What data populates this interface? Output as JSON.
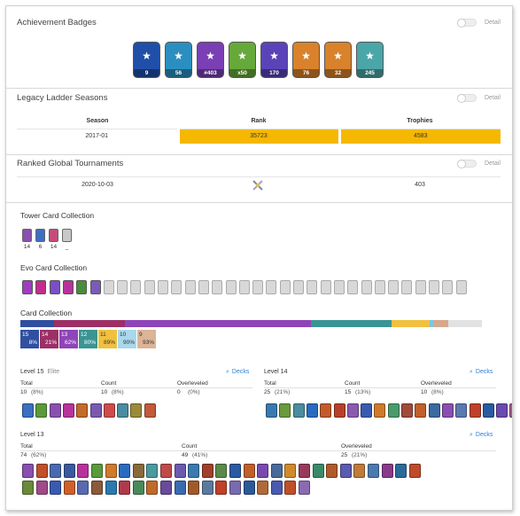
{
  "achievements": {
    "title": "Achievement Badges",
    "detail_label": "Detail",
    "badges": [
      {
        "name": "pool-badge",
        "label": "9",
        "color": "#1f4fa8"
      },
      {
        "name": "level-badge",
        "label": "56",
        "color": "#2a8fc0"
      },
      {
        "name": "trophy-road-badge",
        "label": "#403",
        "color": "#7a3fb5"
      },
      {
        "name": "sword-badge",
        "label": "x50",
        "color": "#66a93a"
      },
      {
        "name": "battle-badge",
        "label": "170",
        "color": "#5a43b8"
      },
      {
        "name": "cw1-badge",
        "label": "76",
        "color": "#d9822b"
      },
      {
        "name": "chest-badge",
        "label": "32",
        "color": "#d9822b"
      },
      {
        "name": "emote-badge",
        "label": "245",
        "color": "#4aa6a8"
      }
    ]
  },
  "legacy": {
    "title": "Legacy Ladder Seasons",
    "detail_label": "Detail",
    "headers": [
      "Season",
      "Rank",
      "Trophies"
    ],
    "row": {
      "season": "2017-01",
      "rank": "35723",
      "trophies": "4583"
    }
  },
  "tournaments": {
    "title": "Ranked Global Tournaments",
    "detail_label": "Detail",
    "row": {
      "date": "2020-10-03",
      "icon": "crossed-swords-icon",
      "value": "403"
    }
  },
  "tower": {
    "title": "Tower Card Collection",
    "cards": [
      {
        "level": "14",
        "color": "#8a4fb0"
      },
      {
        "level": "6",
        "color": "#3b6fc2"
      },
      {
        "level": "14",
        "color": "#c44b7a"
      },
      {
        "level": "_",
        "color": "#c8c8c8"
      }
    ]
  },
  "evo": {
    "title": "Evo Card Collection",
    "owned_colors": [
      "#a03cc0",
      "#c42c8c",
      "#7b4fc4",
      "#b8329a",
      "#4a8c3a",
      "#7d5ab8"
    ],
    "locked_count": 27
  },
  "collection": {
    "title": "Card Collection",
    "bar": [
      {
        "w": 7,
        "color": "#2f4fa0"
      },
      {
        "w": 15,
        "color": "#9c2f66"
      },
      {
        "w": 39,
        "color": "#8e45b8"
      },
      {
        "w": 17,
        "color": "#3a9493"
      },
      {
        "w": 8,
        "color": "#f0c040"
      },
      {
        "w": 1,
        "color": "#7bc6e0"
      },
      {
        "w": 3,
        "color": "#d8a88a"
      },
      {
        "w": 7,
        "color": "#e2e2e2"
      }
    ],
    "levels": [
      {
        "level": "15",
        "pct": "8%",
        "color": "#2f4fa0"
      },
      {
        "level": "14",
        "pct": "21%",
        "color": "#9c2f66"
      },
      {
        "level": "13",
        "pct": "62%",
        "color": "#8e45b8"
      },
      {
        "level": "12",
        "pct": "80%",
        "color": "#3a9493"
      },
      {
        "level": "11",
        "pct": "89%",
        "color": "#f0c040"
      },
      {
        "level": "10",
        "pct": "90%",
        "color": "#a8d8ea"
      },
      {
        "level": "9",
        "pct": "93%",
        "color": "#dcb496"
      }
    ]
  },
  "groups": [
    {
      "heading": "Level 15",
      "elite": "Elite",
      "decks": "Decks",
      "total_label": "Total",
      "total": "10",
      "total_pct": "(8%)",
      "count_label": "Count",
      "count": "10",
      "count_pct": "(8%)",
      "over_label": "Overleveled",
      "over": "0",
      "over_pct": "(0%)",
      "cards": [
        "#3a6fc2",
        "#5a9a3a",
        "#8a4fb0",
        "#b8329a",
        "#c46a2a",
        "#7a5ab0",
        "#d04a4a",
        "#4a8ca0",
        "#9a8a3a",
        "#c05a3a"
      ]
    },
    {
      "heading": "Level 14",
      "elite": "",
      "decks": "Decks",
      "total_label": "Total",
      "total": "25",
      "total_pct": "(21%)",
      "count_label": "Count",
      "count": "15",
      "count_pct": "(13%)",
      "over_label": "Overleveled",
      "over": "10",
      "over_pct": "(8%)",
      "cards": [
        "#3a7ab0",
        "#6a9a3a",
        "#4a8ca0",
        "#2a6ac0",
        "#c45a2a",
        "#b8402a",
        "#8a5ab0",
        "#3a5ab0",
        "#d07a2a",
        "#4a9a6a",
        "#a04a3a",
        "#c0602a",
        "#3a6aa0",
        "#8a4fb0",
        "#5a7ab0",
        "#c0402a",
        "#2a5aa0",
        "#6a4ab0",
        "#a05a8a",
        "#4a6ab0"
      ]
    },
    {
      "heading": "Level 13",
      "elite": "",
      "decks": "Decks",
      "total_label": "Total",
      "total": "74",
      "total_pct": "(62%)",
      "count_label": "Count",
      "count": "49",
      "count_pct": "(41%)",
      "over_label": "Overleveled",
      "over": "25",
      "over_pct": "(21%)",
      "cards": [
        "#8a4fb0",
        "#c0502a",
        "#4a6ab0",
        "#3a5aa0",
        "#b8329a",
        "#5a9a3a",
        "#d07a2a",
        "#2a6ac0",
        "#8a6a3a",
        "#4a9aa0",
        "#c04a4a",
        "#6a5ab0",
        "#3a7ab0",
        "#a0402a",
        "#5a8a4a",
        "#2a5aa0",
        "#c0602a",
        "#7a4ab0",
        "#4a6a9a",
        "#d08a2a",
        "#9a3a5a",
        "#3a8a6a",
        "#b05a2a",
        "#5a5ab0",
        "#c07a3a",
        "#4a7ab0",
        "#8a3a8a",
        "#2a6a9a",
        "#c04a2a",
        "#6a8a3a",
        "#a04a8a",
        "#3a5ab0",
        "#d0602a",
        "#5a6ab0",
        "#8a5a3a",
        "#2a7ab0",
        "#b03a4a",
        "#4a8a5a",
        "#c06a2a",
        "#6a4a9a",
        "#3a6ab0",
        "#a05a2a",
        "#5a7aa0",
        "#c0402a",
        "#7a6ab0",
        "#2a5a9a",
        "#b06a3a",
        "#4a5ab0",
        "#c0502a",
        "#8a6ab0"
      ]
    }
  ]
}
